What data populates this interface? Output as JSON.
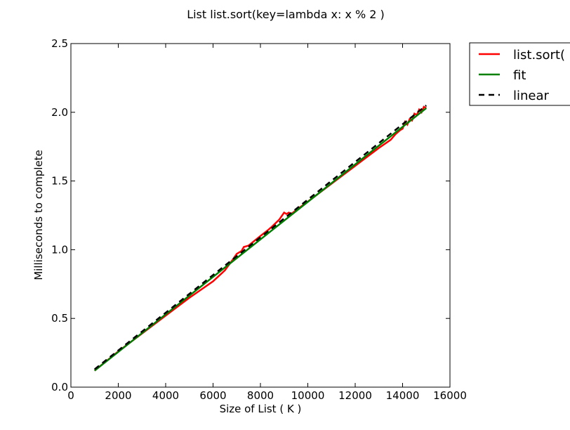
{
  "chart_data": {
    "type": "line",
    "title": "List list.sort(key=lambda x: x % 2 )",
    "xlabel": "Size of List ( K )",
    "ylabel": "Milliseconds to complete",
    "xlim": [
      0,
      16000
    ],
    "ylim": [
      0.0,
      2.5
    ],
    "xticks": [
      0,
      2000,
      4000,
      6000,
      8000,
      10000,
      12000,
      14000,
      16000
    ],
    "yticks": [
      0.0,
      0.5,
      1.0,
      1.5,
      2.0,
      2.5
    ],
    "xtick_labels": [
      "0",
      "2000",
      "4000",
      "6000",
      "8000",
      "10000",
      "12000",
      "14000",
      "16000"
    ],
    "ytick_labels": [
      "0.0",
      "0.5",
      "1.0",
      "1.5",
      "2.0",
      "2.5"
    ],
    "grid": false,
    "legend_position": "outside-top-right",
    "series": [
      {
        "name": "list.sort(",
        "color": "#ff0000",
        "style": "solid",
        "x": [
          1000,
          2000,
          3000,
          4000,
          5000,
          6000,
          6500,
          6800,
          7000,
          7200,
          7300,
          7500,
          8000,
          8300,
          8500,
          8800,
          9000,
          9100,
          9200,
          9300,
          9600,
          10000,
          11000,
          12000,
          13000,
          13500,
          13700,
          13900,
          14000,
          14100,
          14200,
          14300,
          14400,
          14500,
          14600,
          14700,
          14800,
          14900,
          15000
        ],
        "y": [
          0.12,
          0.26,
          0.39,
          0.52,
          0.65,
          0.77,
          0.85,
          0.92,
          0.97,
          0.99,
          1.02,
          1.03,
          1.1,
          1.14,
          1.17,
          1.22,
          1.27,
          1.26,
          1.27,
          1.26,
          1.3,
          1.35,
          1.48,
          1.61,
          1.74,
          1.8,
          1.84,
          1.87,
          1.88,
          1.93,
          1.91,
          1.95,
          1.94,
          1.99,
          1.98,
          2.02,
          2.0,
          2.04,
          2.03
        ]
      },
      {
        "name": "fit",
        "color": "#008000",
        "style": "solid",
        "x": [
          1000,
          15000
        ],
        "y": [
          0.12,
          2.03
        ]
      },
      {
        "name": "linear",
        "color": "#000000",
        "style": "dashed",
        "x": [
          1000,
          15000
        ],
        "y": [
          0.13,
          2.05
        ]
      }
    ]
  }
}
